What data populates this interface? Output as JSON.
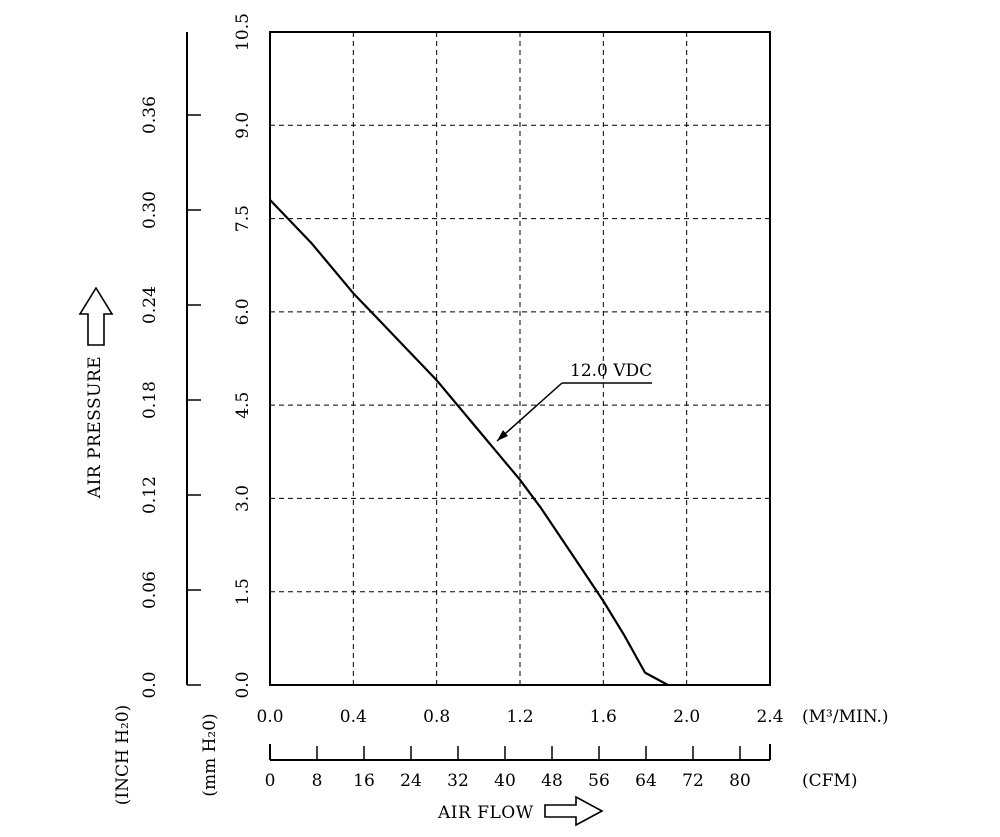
{
  "chart_data": {
    "type": "line",
    "title": "",
    "x_axis": {
      "label": "AIR FLOW",
      "unit": "(M³/MIN.)",
      "range": [
        0.0,
        2.4
      ],
      "tick_labels": [
        "0.0",
        "0.4",
        "0.8",
        "1.2",
        "1.6",
        "2.0",
        "2.4"
      ]
    },
    "x2_axis": {
      "unit": "(CFM)",
      "tick_labels": [
        "0",
        "8",
        "16",
        "24",
        "32",
        "40",
        "48",
        "56",
        "64",
        "72",
        "80"
      ]
    },
    "y_axis": {
      "unit": "(mm H₂0)",
      "range": [
        0.0,
        10.5
      ],
      "tick_labels": [
        "0.0",
        "1.5",
        "3.0",
        "4.5",
        "6.0",
        "7.5",
        "9.0",
        "10.5"
      ]
    },
    "y2_axis": {
      "label": "AIR PRESSURE",
      "unit": "(INCH H₂0)",
      "tick_labels": [
        "0.0",
        "0.06",
        "0.12",
        "0.18",
        "0.24",
        "0.30",
        "0.36"
      ]
    },
    "grid": true,
    "series": [
      {
        "name": "12.0 VDC",
        "x": [
          0.0,
          0.2,
          0.4,
          0.6,
          0.8,
          1.0,
          1.2,
          1.3,
          1.4,
          1.5,
          1.6,
          1.7,
          1.8,
          1.91
        ],
        "y": [
          7.8,
          7.1,
          6.3,
          5.6,
          4.9,
          4.1,
          3.3,
          2.85,
          2.35,
          1.85,
          1.35,
          0.8,
          0.2,
          0.0
        ]
      }
    ]
  }
}
